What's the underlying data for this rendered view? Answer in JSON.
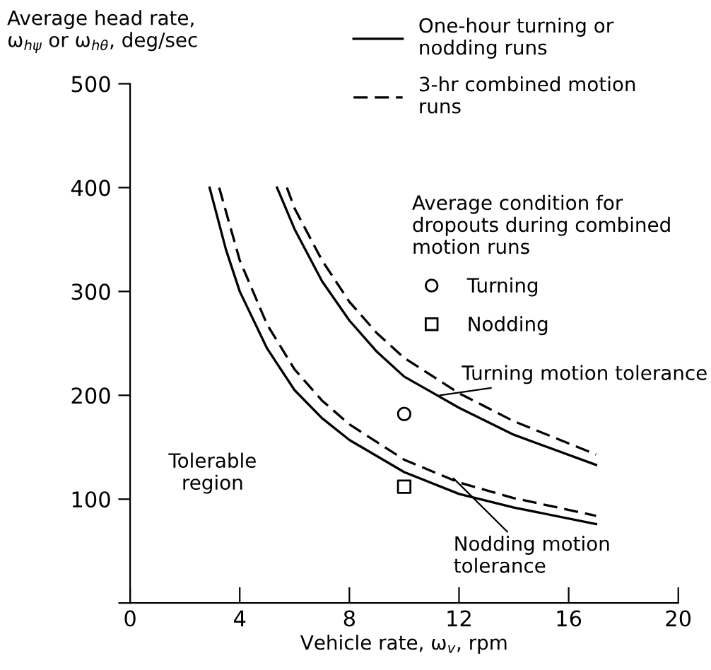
{
  "chart_data": {
    "type": "line",
    "xlabel": "Vehicle rate, ω$_{v}$, rpm",
    "ylabel": "Average head rate,\nω$_{hψ}$ or ω$_{hθ}$, deg/sec",
    "legend_title": "Average condition for\ndropouts during combined\nmotion runs",
    "xlim": [
      0,
      20
    ],
    "ylim": [
      0,
      500
    ],
    "xticks": [
      0,
      4,
      8,
      12,
      16,
      20
    ],
    "yticks": [
      {
        "value": 0,
        "label": null
      },
      100,
      200,
      300,
      400,
      500
    ],
    "grid": false,
    "legend": "top right",
    "series": [
      {
        "name": "One-hour turning or\nnodding runs",
        "color": "#000000",
        "line_style": "solid",
        "marker": "none",
        "x": [
          2.9,
          3.5,
          4,
          5,
          6,
          7,
          8,
          10,
          12,
          14,
          17
        ],
        "values": [
          400,
          340,
          300,
          245,
          205,
          178,
          157,
          126,
          105,
          92,
          76
        ]
      },
      {
        "name": "3-hr combined motion\nruns",
        "color": "#000000",
        "line_style": "dashed",
        "marker": "none",
        "x": [
          3.25,
          4,
          5,
          6,
          7,
          8,
          10,
          12,
          14,
          17
        ],
        "values": [
          400,
          330,
          268,
          225,
          195,
          172,
          138,
          116,
          101,
          84
        ]
      },
      {
        "color": "#000000",
        "line_style": "solid",
        "marker": "none",
        "x": [
          5.36,
          6,
          7,
          8,
          9,
          10,
          11,
          12,
          14,
          17
        ],
        "values": [
          400,
          360,
          310,
          272,
          242,
          218,
          203,
          188,
          162,
          133
        ]
      },
      {
        "color": "#000000",
        "line_style": "dashed",
        "marker": "none",
        "x": [
          5.72,
          6,
          7,
          8,
          9,
          10,
          12,
          14,
          17
        ],
        "values": [
          400,
          380,
          330,
          290,
          260,
          236,
          202,
          175,
          143
        ]
      },
      {
        "name": "Turning",
        "type": "scatter",
        "color": "#000000",
        "marker": "circle",
        "x": [
          10
        ],
        "values": [
          182
        ]
      },
      {
        "name": "Nodding",
        "type": "scatter",
        "color": "#000000",
        "marker": "square",
        "x": [
          10
        ],
        "values": [
          112
        ]
      }
    ],
    "annotations": [
      "Tolerable\nregion",
      {
        "text": "Turning motion tolerance",
        "x": 11.3,
        "y": 200
      },
      {
        "text": "Nodding motion\ntolerance",
        "x": 11.8,
        "y": 120
      }
    ]
  }
}
